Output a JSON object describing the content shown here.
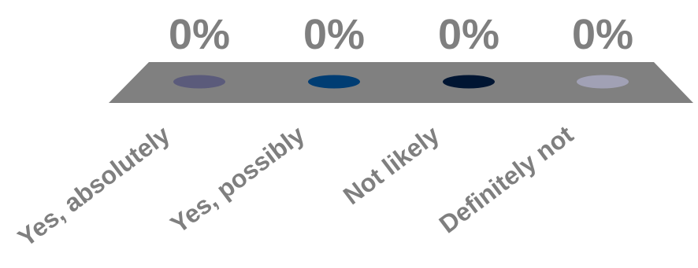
{
  "chart_data": {
    "type": "bar",
    "categories": [
      "Yes, absolutely",
      "Yes, possibly",
      "Not likely",
      "Definitely not"
    ],
    "values": [
      0,
      0,
      0,
      0
    ],
    "value_labels": [
      "0%",
      "0%",
      "0%",
      "0%"
    ],
    "ylim": [
      0,
      100
    ],
    "colors": [
      "#5b5b7b",
      "#003d73",
      "#001532",
      "#a1a1b5"
    ],
    "floor_color": "#808080",
    "label_color": "#7f7f7f",
    "grid": false,
    "legend": "none"
  }
}
